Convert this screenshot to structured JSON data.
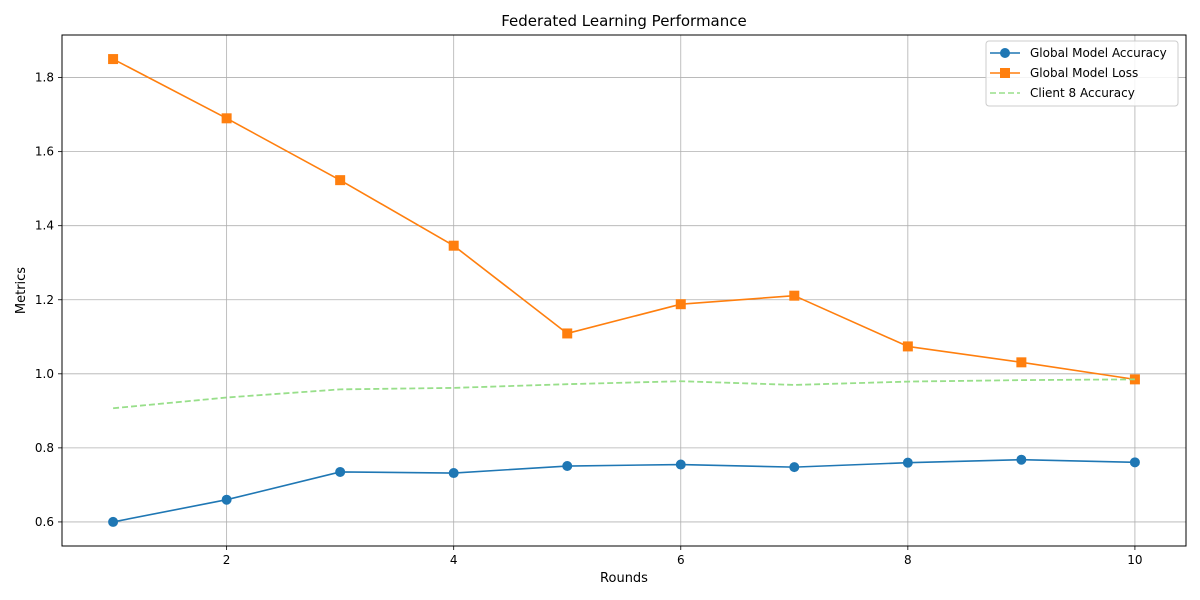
{
  "chart_data": {
    "type": "line",
    "title": "Federated Learning Performance",
    "xlabel": "Rounds",
    "ylabel": "Metrics",
    "xlim": [
      0.55,
      10.45
    ],
    "ylim": [
      0.535,
      1.915
    ],
    "xticks": [
      2,
      4,
      6,
      8,
      10
    ],
    "yticks": [
      0.6,
      0.8,
      1.0,
      1.2,
      1.4,
      1.6,
      1.8
    ],
    "xtick_labels": [
      "2",
      "4",
      "6",
      "8",
      "10"
    ],
    "ytick_labels": [
      "0.6",
      "0.8",
      "1.0",
      "1.2",
      "1.4",
      "1.6",
      "1.8"
    ],
    "grid": true,
    "legend_position": "top-right",
    "x": [
      1,
      2,
      3,
      4,
      5,
      6,
      7,
      8,
      9,
      10
    ],
    "series": [
      {
        "name": "Global Model Accuracy",
        "color": "#1f77b4",
        "marker": "circle",
        "line_style": "solid",
        "values": [
          0.6,
          0.66,
          0.735,
          0.732,
          0.751,
          0.755,
          0.748,
          0.76,
          0.768,
          0.761
        ]
      },
      {
        "name": "Global Model Loss",
        "color": "#ff7f0e",
        "marker": "square",
        "line_style": "solid",
        "values": [
          1.85,
          1.69,
          1.523,
          1.346,
          1.109,
          1.188,
          1.211,
          1.074,
          1.031,
          0.985
        ]
      },
      {
        "name": "Client 8 Accuracy",
        "color": "#98df8a",
        "marker": "none",
        "line_style": "dashed",
        "values": [
          0.907,
          0.936,
          0.958,
          0.962,
          0.972,
          0.98,
          0.97,
          0.979,
          0.983,
          0.985
        ]
      }
    ]
  }
}
